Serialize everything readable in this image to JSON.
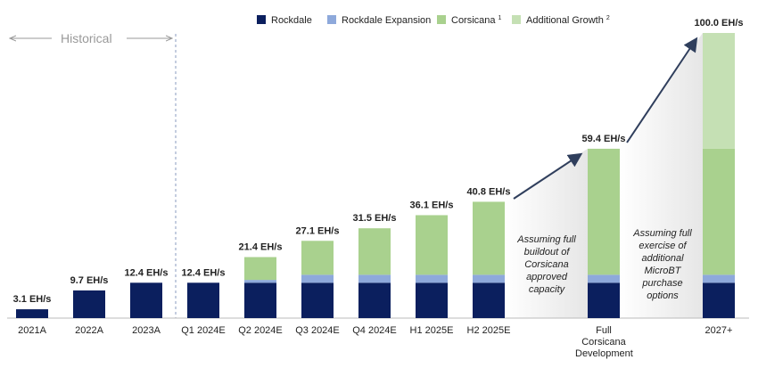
{
  "chart_data": {
    "type": "stacked_bar",
    "categories": [
      "2021A",
      "2022A",
      "2023A",
      "Q1 2024E",
      "Q2 2024E",
      "Q3 2024E",
      "Q4 2024E",
      "H1 2025E",
      "H2 2025E",
      "Full Corsicana Development",
      "2027+"
    ],
    "series": [
      {
        "name": "Rockdale",
        "color": "#0b1f5e",
        "values": [
          3.1,
          9.7,
          12.4,
          12.4,
          12.4,
          12.4,
          12.4,
          12.4,
          12.4,
          12.4,
          12.4
        ]
      },
      {
        "name": "Rockdale Expansion",
        "color": "#8ea9db",
        "values": [
          null,
          null,
          null,
          null,
          1.0,
          2.8,
          2.8,
          2.8,
          2.8,
          2.8,
          2.8
        ]
      },
      {
        "name": "Corsicana",
        "note": "1",
        "color": "#a9d18e",
        "values": [
          null,
          null,
          null,
          null,
          8.0,
          11.9,
          16.3,
          20.9,
          25.6,
          44.2,
          44.2
        ]
      },
      {
        "name": "Additional Growth",
        "note": "2",
        "color": "#c5e0b4",
        "values": [
          null,
          null,
          null,
          null,
          null,
          null,
          null,
          null,
          null,
          null,
          40.6
        ]
      }
    ],
    "totals": [
      3.1,
      9.7,
      12.4,
      12.4,
      21.4,
      27.1,
      31.5,
      36.1,
      40.8,
      59.4,
      100.0
    ],
    "total_labels": [
      "3.1 EH/s",
      "9.7 EH/s",
      "12.4 EH/s",
      "12.4 EH/s",
      "21.4 EH/s",
      "27.1 EH/s",
      "31.5 EH/s",
      "36.1 EH/s",
      "40.8 EH/s",
      "59.4 EH/s",
      "100.0 EH/s"
    ],
    "ylim": [
      0,
      100
    ],
    "annotations": [
      "Historical",
      "Assuming full buildout of Corsicana approved capacity",
      "Assuming full exercise of additional MicroBT purchase options"
    ]
  }
}
